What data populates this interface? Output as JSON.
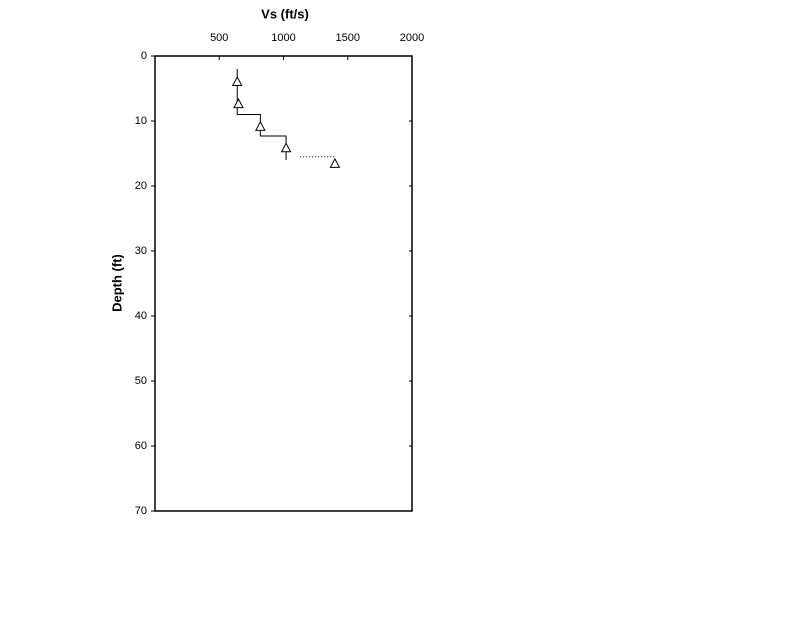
{
  "chart_data": {
    "type": "scatter",
    "x_label": "Vs (ft/s)",
    "y_label": "Depth (ft)",
    "xlim": [
      0,
      2000
    ],
    "xticks": [
      500,
      1000,
      1500,
      2000
    ],
    "ylim": [
      0,
      70
    ],
    "yticks": [
      0,
      10,
      20,
      30,
      40,
      50,
      60,
      70
    ],
    "y_inverted": true,
    "x_axis_position": "top",
    "series": [
      {
        "color": "#000000",
        "line": "solid",
        "marker": "none",
        "x": [
          640,
          640,
          820,
          820,
          1020,
          1020
        ],
        "y": [
          2,
          9,
          9,
          12.3,
          12.3,
          16
        ]
      },
      {
        "color": "#000000",
        "line": "dotted",
        "marker": "none",
        "x": [
          1130,
          1400
        ],
        "y": [
          15.5,
          15.5
        ]
      },
      {
        "color": "#000000",
        "line": "none",
        "marker": "triangle",
        "x": [
          640,
          650,
          820,
          1020,
          1400
        ],
        "y": [
          4,
          7.4,
          10.9,
          14.2,
          16.6
        ]
      }
    ]
  }
}
